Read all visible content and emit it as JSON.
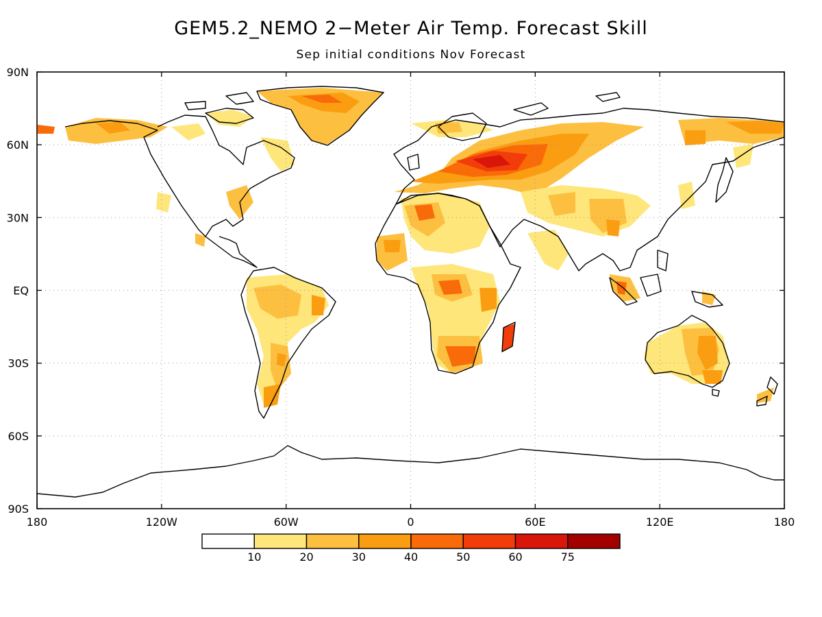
{
  "title": "GEM5.2_NEMO 2−Meter Air Temp. Forecast Skill",
  "subtitle": "Sep initial conditions   Nov Forecast",
  "map": {
    "lat_labels": [
      "90N",
      "60N",
      "30N",
      "EQ",
      "30S",
      "60S",
      "90S"
    ],
    "lon_labels": [
      "180",
      "120W",
      "60W",
      "0",
      "60E",
      "120E",
      "180"
    ],
    "gridlines": true,
    "coastline_color": "#000000"
  },
  "colorbar": {
    "levels": [
      "10",
      "20",
      "30",
      "40",
      "50",
      "60",
      "75"
    ],
    "colors": [
      "#ffffff",
      "#fee67a",
      "#fdbf40",
      "#fb9d10",
      "#f96a08",
      "#f23c0a",
      "#d9160a",
      "#a30000"
    ]
  }
}
